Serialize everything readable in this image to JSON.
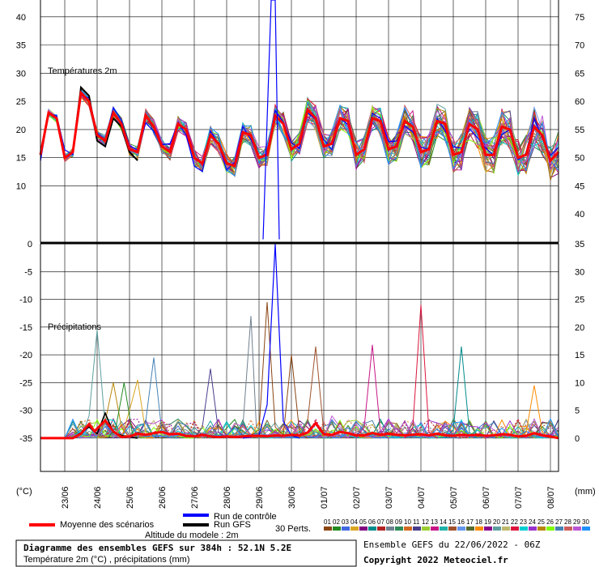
{
  "chart_data": {
    "type": "line",
    "panels": {
      "temperature": {
        "label": "Températures 2m",
        "left_ticks": [
          10,
          15,
          20,
          25,
          30,
          35,
          40
        ],
        "left_range": [
          0,
          43
        ],
        "right_ticks": [
          40,
          45,
          50,
          55,
          60,
          65,
          70,
          75
        ]
      },
      "precipitation": {
        "label": "Précipitations",
        "left_ticks": [
          -35,
          -30,
          -25,
          -20,
          -15,
          -10,
          -5,
          0
        ],
        "right_ticks": [
          0,
          5,
          10,
          15,
          20,
          25,
          30,
          35
        ],
        "range_mm": [
          -6,
          35
        ]
      }
    },
    "x_ticks": [
      "23/06",
      "24/06",
      "25/06",
      "26/06",
      "27/06",
      "28/06",
      "29/06",
      "30/06",
      "01/07",
      "02/07",
      "03/07",
      "04/07",
      "05/07",
      "06/07",
      "07/07",
      "08/07"
    ],
    "x_range_hours": [
      0,
      384
    ],
    "left_unit": "(°C)",
    "right_unit": "(mm)",
    "mean_temperature": [
      [
        0,
        15.5
      ],
      [
        6,
        23
      ],
      [
        12,
        22
      ],
      [
        18,
        15
      ],
      [
        24,
        16
      ],
      [
        30,
        26.5
      ],
      [
        36,
        25
      ],
      [
        42,
        19
      ],
      [
        48,
        18
      ],
      [
        54,
        23
      ],
      [
        60,
        21
      ],
      [
        66,
        16.5
      ],
      [
        72,
        16
      ],
      [
        78,
        22.5
      ],
      [
        84,
        20.5
      ],
      [
        90,
        17
      ],
      [
        96,
        16
      ],
      [
        102,
        21
      ],
      [
        108,
        20
      ],
      [
        114,
        15
      ],
      [
        120,
        14
      ],
      [
        126,
        19
      ],
      [
        132,
        17.5
      ],
      [
        138,
        14
      ],
      [
        144,
        13.5
      ],
      [
        150,
        19.5
      ],
      [
        156,
        19
      ],
      [
        162,
        15
      ],
      [
        168,
        15.5
      ],
      [
        174,
        22.5
      ],
      [
        180,
        21
      ],
      [
        186,
        16.5
      ],
      [
        192,
        17.5
      ],
      [
        198,
        23.5
      ],
      [
        204,
        22
      ],
      [
        210,
        17
      ],
      [
        216,
        17.5
      ],
      [
        222,
        22
      ],
      [
        228,
        21.5
      ],
      [
        234,
        15.5
      ],
      [
        240,
        16.5
      ],
      [
        246,
        22
      ],
      [
        252,
        21.5
      ],
      [
        258,
        16.5
      ],
      [
        264,
        17
      ],
      [
        270,
        21.5
      ],
      [
        276,
        20.5
      ],
      [
        282,
        16
      ],
      [
        288,
        16.5
      ],
      [
        294,
        21.5
      ],
      [
        300,
        21
      ],
      [
        306,
        15.5
      ],
      [
        312,
        16
      ],
      [
        318,
        21
      ],
      [
        324,
        20
      ],
      [
        330,
        15.5
      ],
      [
        336,
        15.5
      ],
      [
        342,
        20.5
      ],
      [
        348,
        20
      ],
      [
        354,
        15
      ],
      [
        360,
        15.5
      ],
      [
        366,
        20.5
      ],
      [
        372,
        19
      ],
      [
        378,
        14.5
      ],
      [
        384,
        16
      ]
    ],
    "gfs_temperature": [
      [
        0,
        15.5
      ],
      [
        6,
        23
      ],
      [
        12,
        22
      ],
      [
        18,
        15
      ],
      [
        24,
        16
      ],
      [
        30,
        27.5
      ],
      [
        36,
        26
      ],
      [
        42,
        18
      ],
      [
        48,
        17
      ],
      [
        54,
        22
      ],
      [
        60,
        20.5
      ],
      [
        66,
        16
      ],
      [
        72,
        14.5
      ]
    ],
    "mean_precipitation": [
      [
        0,
        0
      ],
      [
        24,
        0
      ],
      [
        30,
        0.8
      ],
      [
        36,
        2.5
      ],
      [
        40,
        1.2
      ],
      [
        48,
        3.2
      ],
      [
        54,
        1.2
      ],
      [
        60,
        0.2
      ],
      [
        66,
        0.3
      ],
      [
        72,
        0.8
      ],
      [
        78,
        0.6
      ],
      [
        84,
        0.9
      ],
      [
        90,
        1.1
      ],
      [
        96,
        0.7
      ],
      [
        102,
        0.8
      ],
      [
        108,
        0.4
      ],
      [
        114,
        0.3
      ],
      [
        120,
        0.6
      ],
      [
        126,
        0.3
      ],
      [
        132,
        0.2
      ],
      [
        138,
        0.3
      ],
      [
        144,
        0.2
      ],
      [
        150,
        0.3
      ],
      [
        156,
        0.4
      ],
      [
        162,
        0.4
      ],
      [
        168,
        0.3
      ],
      [
        174,
        0.5
      ],
      [
        180,
        0.4
      ],
      [
        186,
        0.6
      ],
      [
        192,
        0.5
      ],
      [
        198,
        1.0
      ],
      [
        204,
        2.7
      ],
      [
        210,
        0.7
      ],
      [
        216,
        0.6
      ],
      [
        222,
        1.1
      ],
      [
        228,
        0.9
      ],
      [
        234,
        0.5
      ],
      [
        240,
        0.5
      ],
      [
        246,
        0.9
      ],
      [
        252,
        0.6
      ],
      [
        258,
        0.8
      ],
      [
        264,
        0.6
      ],
      [
        270,
        0.5
      ],
      [
        276,
        0.6
      ],
      [
        282,
        0.7
      ],
      [
        288,
        0.5
      ],
      [
        294,
        0.8
      ],
      [
        300,
        0.5
      ],
      [
        306,
        0.4
      ],
      [
        312,
        0.6
      ],
      [
        318,
        0.5
      ],
      [
        324,
        0.6
      ],
      [
        330,
        0.4
      ],
      [
        336,
        0.5
      ],
      [
        342,
        0.7
      ],
      [
        348,
        0.6
      ],
      [
        354,
        0.3
      ],
      [
        360,
        0.4
      ],
      [
        366,
        0.9
      ],
      [
        372,
        0.5
      ],
      [
        378,
        0.3
      ],
      [
        384,
        0
      ]
    ],
    "spike_precipitation": [
      [
        [
          150,
          0
        ],
        [
          156,
          0.5
        ],
        [
          162,
          1.5
        ],
        [
          168,
          24.5
        ],
        [
          174,
          2
        ],
        [
          180,
          0.5
        ],
        [
          186,
          15
        ],
        [
          192,
          1
        ],
        [
          198,
          0
        ]
      ],
      [
        [
          138,
          0
        ],
        [
          144,
          0.8
        ],
        [
          150,
          2
        ],
        [
          156,
          22
        ],
        [
          160,
          2
        ],
        [
          168,
          0.5
        ],
        [
          174,
          0
        ]
      ],
      [
        [
          192,
          0
        ],
        [
          198,
          3
        ],
        [
          204,
          16.5
        ],
        [
          210,
          1
        ],
        [
          216,
          0
        ]
      ],
      [
        [
          270,
          0
        ],
        [
          276,
          2
        ],
        [
          282,
          24
        ],
        [
          288,
          1
        ],
        [
          294,
          0
        ]
      ],
      [
        [
          210,
          0
        ],
        [
          216,
          4
        ],
        [
          222,
          2
        ],
        [
          228,
          0
        ]
      ],
      [
        [
          300,
          0
        ],
        [
          306,
          1.5
        ],
        [
          312,
          16.5
        ],
        [
          318,
          1
        ],
        [
          324,
          0
        ]
      ],
      [
        [
          234,
          0
        ],
        [
          240,
          2
        ],
        [
          246,
          16.8
        ],
        [
          252,
          1
        ],
        [
          258,
          0
        ]
      ],
      [
        [
          30,
          0
        ],
        [
          36,
          4
        ],
        [
          42,
          19.5
        ],
        [
          48,
          2
        ],
        [
          54,
          0
        ]
      ],
      [
        [
          72,
          0
        ],
        [
          78,
          3
        ],
        [
          84,
          14.5
        ],
        [
          90,
          1
        ],
        [
          96,
          0
        ]
      ],
      [
        [
          60,
          0
        ],
        [
          66,
          5
        ],
        [
          72,
          10.5
        ],
        [
          78,
          1
        ],
        [
          84,
          0
        ]
      ],
      [
        [
          114,
          0
        ],
        [
          120,
          2
        ],
        [
          126,
          12.5
        ],
        [
          132,
          1
        ],
        [
          138,
          0
        ]
      ],
      [
        [
          354,
          0
        ],
        [
          360,
          1
        ],
        [
          366,
          9.5
        ],
        [
          372,
          1
        ],
        [
          378,
          0
        ]
      ],
      [
        [
          42,
          0
        ],
        [
          48,
          3
        ],
        [
          54,
          10
        ],
        [
          60,
          2
        ],
        [
          66,
          0
        ]
      ],
      [
        [
          50,
          0
        ],
        [
          56,
          2
        ],
        [
          62,
          10
        ],
        [
          68,
          1
        ],
        [
          72,
          0
        ]
      ]
    ],
    "legend": {
      "mean": "Moyenne des scénarios",
      "control": "Run de contrôle",
      "gfs": "Run GFS",
      "perts_label": "30 Perts.",
      "members": [
        "01",
        "02",
        "03",
        "04",
        "05",
        "06",
        "07",
        "08",
        "09",
        "10",
        "11",
        "12",
        "13",
        "14",
        "15",
        "16",
        "17",
        "18",
        "19",
        "20",
        "21",
        "22",
        "23",
        "24",
        "25",
        "26",
        "27",
        "28",
        "29",
        "30"
      ],
      "member_colors": [
        "#8B4513",
        "#228B22",
        "#4169E1",
        "#DAA520",
        "#800080",
        "#008B8B",
        "#B22222",
        "#708090",
        "#2E8B57",
        "#D2691E",
        "#483D8B",
        "#9ACD32",
        "#C71585",
        "#20B2AA",
        "#A0522D",
        "#6495ED",
        "#556B2F",
        "#FF8C00",
        "#8B008B",
        "#5F9EA0",
        "#BDB76B",
        "#DC143C",
        "#00CED1",
        "#9932CC",
        "#B8860B",
        "#7FFF00",
        "#4682B4",
        "#CD5C5C",
        "#BA55D3",
        "#1E90FF"
      ],
      "mean_color": "#ff0000",
      "control_color": "#0000ff",
      "gfs_color": "#000000"
    },
    "altitude": "Altitude du modele : 2m",
    "title": "Diagramme des ensembles GEFS sur 384h : 52.1N 5.2E",
    "subtitle": "Température 2m (°C) , précipitations (mm)",
    "run_info": "Ensemble GEFS du 22/06/2022 - 06Z",
    "copyright": "Copyright 2022 Meteociel.fr"
  }
}
